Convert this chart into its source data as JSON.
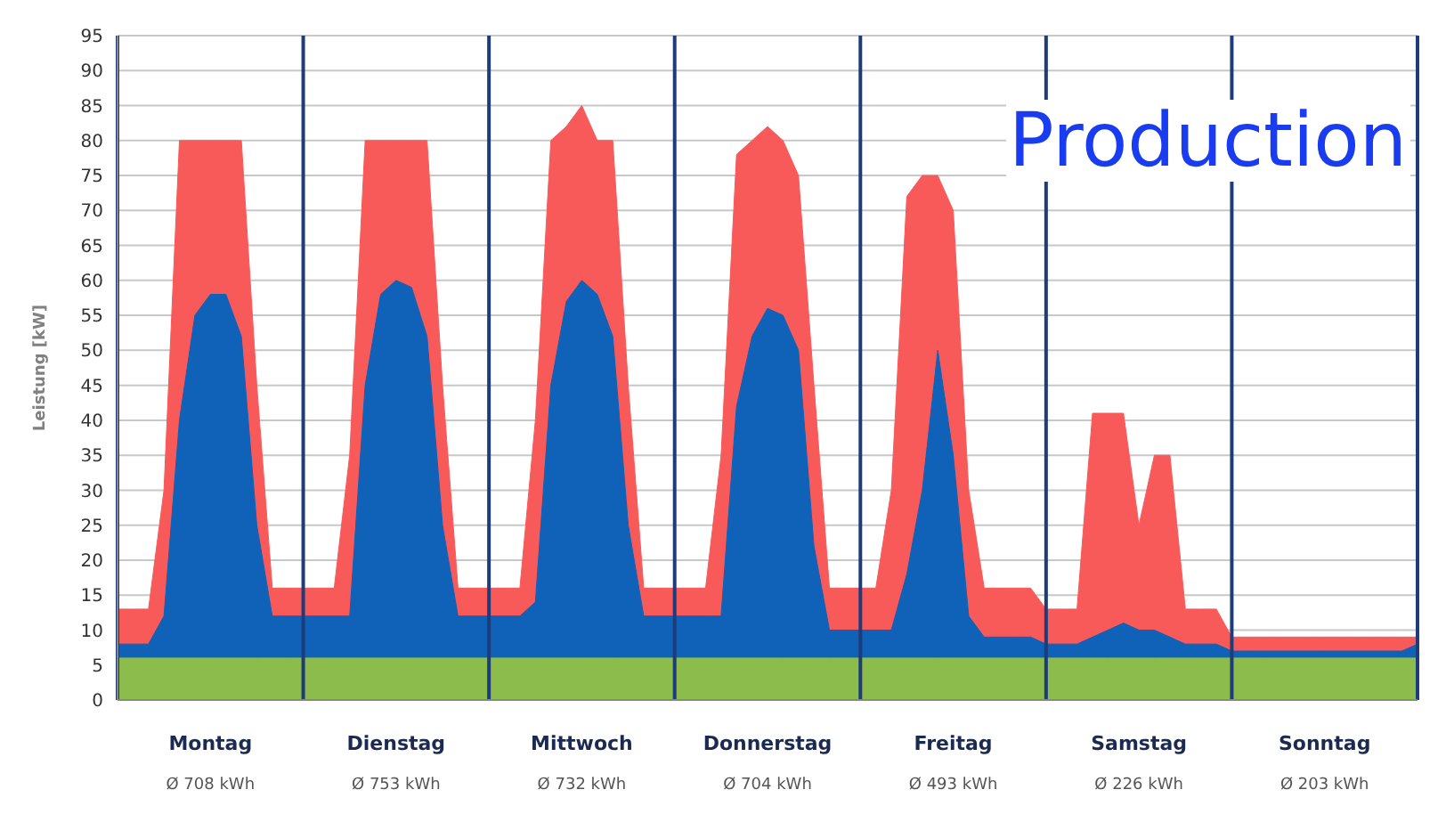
{
  "chart_data": {
    "type": "area",
    "ylabel": "Leistung [kW]",
    "annotations": [
      "Production"
    ],
    "categories": [
      null,
      null,
      null,
      null,
      null,
      null,
      "Montag\nØ 708 kWh",
      null,
      null,
      null,
      null,
      null,
      null,
      null,
      null,
      null,
      null,
      null,
      "Dienstag\nØ 753 kWh",
      null,
      null,
      null,
      null,
      null,
      null,
      null,
      null,
      null,
      null,
      null,
      "Mittwoch\nØ 732 kWh",
      null,
      null,
      null,
      null,
      null,
      null,
      null,
      null,
      null,
      null,
      null,
      "Donnerstag\nØ 704 kWh",
      null,
      null,
      null,
      null,
      null,
      null,
      null,
      null,
      null,
      null,
      null,
      "Freitag\nØ 493 kWh",
      null,
      null,
      null,
      null,
      null,
      null,
      null,
      null,
      null,
      null,
      null,
      "Samstag\nØ 226 kWh",
      null,
      null,
      null,
      null,
      null,
      null,
      null,
      null,
      null,
      null,
      null,
      "Sonntag\nØ 203 kWh",
      null,
      null,
      null,
      null,
      null,
      null
    ],
    "series": [
      {
        "color": "#f85a5a",
        "values": [
          13,
          13,
          13,
          30,
          80,
          80,
          80,
          80,
          80,
          45,
          16,
          16,
          16,
          16,
          16,
          35,
          80,
          80,
          80,
          80,
          80,
          45,
          16,
          16,
          16,
          16,
          16,
          40,
          80,
          82,
          85,
          80,
          80,
          45,
          16,
          16,
          16,
          16,
          16,
          35,
          78,
          80,
          82,
          80,
          75,
          45,
          16,
          16,
          16,
          16,
          30,
          72,
          75,
          75,
          70,
          30,
          16,
          16,
          16,
          16,
          13,
          13,
          13,
          41,
          41,
          41,
          25,
          35,
          35,
          13,
          13,
          13,
          9,
          9,
          9,
          9,
          9,
          9,
          9,
          9,
          9,
          9,
          9,
          9,
          9
        ]
      },
      {
        "color": "#0f62b8",
        "values": [
          8,
          8,
          8,
          12,
          40,
          55,
          58,
          58,
          52,
          25,
          12,
          12,
          12,
          12,
          12,
          12,
          45,
          58,
          60,
          59,
          52,
          25,
          12,
          12,
          12,
          12,
          12,
          14,
          45,
          57,
          60,
          58,
          52,
          25,
          12,
          12,
          12,
          12,
          12,
          12,
          42,
          52,
          56,
          55,
          50,
          22,
          10,
          10,
          10,
          10,
          10,
          18,
          30,
          50,
          35,
          12,
          9,
          9,
          9,
          9,
          8,
          8,
          8,
          9,
          10,
          11,
          10,
          10,
          9,
          8,
          8,
          8,
          7,
          7,
          7,
          7,
          7,
          7,
          7,
          7,
          7,
          7,
          7,
          7,
          8
        ]
      },
      {
        "color": "#8cbc4c",
        "values": [
          6,
          6,
          6,
          6,
          6,
          6,
          6,
          6,
          6,
          6,
          6,
          6,
          6,
          6,
          6,
          6,
          6,
          6,
          6,
          6,
          6,
          6,
          6,
          6,
          6,
          6,
          6,
          6,
          6,
          6,
          6,
          6,
          6,
          6,
          6,
          6,
          6,
          6,
          6,
          6,
          6,
          6,
          6,
          6,
          6,
          6,
          6,
          6,
          6,
          6,
          6,
          6,
          6,
          6,
          6,
          6,
          6,
          6,
          6,
          6,
          6,
          6,
          6,
          6,
          6,
          6,
          6,
          6,
          6,
          6,
          6,
          6,
          6,
          6,
          6,
          6,
          6,
          6,
          6,
          6,
          6,
          6,
          6,
          6,
          6
        ]
      }
    ],
    "ylim": [
      0,
      95
    ],
    "yticks": [
      0,
      5,
      10,
      15,
      20,
      25,
      30,
      35,
      40,
      45,
      50,
      55,
      60,
      65,
      70,
      75,
      80,
      85,
      90,
      95
    ],
    "grid": "y",
    "legend": false
  }
}
